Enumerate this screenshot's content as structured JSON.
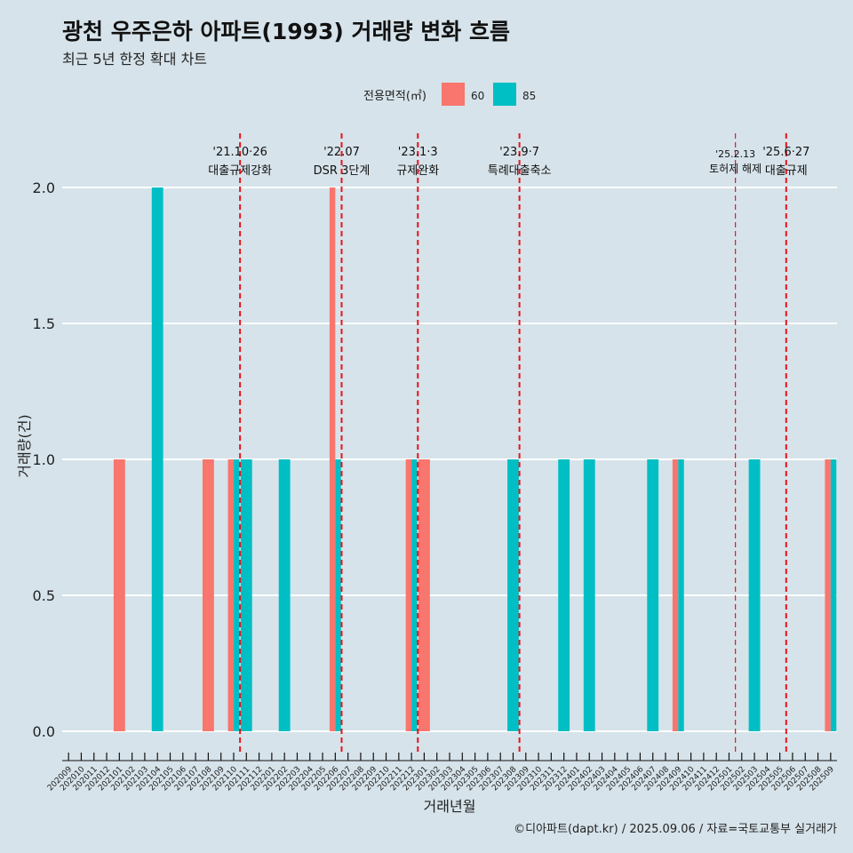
{
  "title": "광천 우주은하 아파트(1993) 거래량 변화 흐름",
  "subtitle": "최근 5년 한정 확대 차트",
  "caption": "©디아파트(dapt.kr) / 2025.09.06 / 자료=국토교통부 실거래가",
  "legend": {
    "title": "전용면적(㎡)",
    "items": [
      {
        "label": "60",
        "color": "#f8766d"
      },
      {
        "label": "85",
        "color": "#00bfc4"
      }
    ]
  },
  "chart_data": {
    "type": "bar",
    "xlabel": "거래년월",
    "ylabel": "거래량(건)",
    "ylim": [
      0,
      2
    ],
    "yticks": [
      "0.0",
      "0.5",
      "1.0",
      "1.5",
      "2.0"
    ],
    "categories": [
      "202009",
      "202010",
      "202011",
      "202012",
      "202101",
      "202102",
      "202103",
      "202104",
      "202105",
      "202106",
      "202107",
      "202108",
      "202109",
      "202110",
      "202111",
      "202112",
      "202201",
      "202202",
      "202203",
      "202204",
      "202205",
      "202206",
      "202207",
      "202208",
      "202209",
      "202210",
      "202211",
      "202212",
      "202301",
      "202302",
      "202303",
      "202304",
      "202305",
      "202306",
      "202307",
      "202308",
      "202309",
      "202310",
      "202311",
      "202312",
      "202401",
      "202402",
      "202403",
      "202404",
      "202405",
      "202406",
      "202407",
      "202408",
      "202409",
      "202410",
      "202411",
      "202412",
      "202501",
      "202502",
      "202503",
      "202504",
      "202505",
      "202506",
      "202507",
      "202508",
      "202509"
    ],
    "series": [
      {
        "name": "60",
        "color": "#f8766d",
        "points": [
          {
            "x": "202101",
            "y": 1
          },
          {
            "x": "202108",
            "y": 1
          },
          {
            "x": "202110",
            "y": 1
          },
          {
            "x": "202206",
            "y": 2
          },
          {
            "x": "202212",
            "y": 1
          },
          {
            "x": "202301",
            "y": 1
          },
          {
            "x": "202409",
            "y": 1
          },
          {
            "x": "202509",
            "y": 1
          }
        ]
      },
      {
        "name": "85",
        "color": "#00bfc4",
        "points": [
          {
            "x": "202104",
            "y": 2
          },
          {
            "x": "202110",
            "y": 1
          },
          {
            "x": "202111",
            "y": 1
          },
          {
            "x": "202202",
            "y": 1
          },
          {
            "x": "202206",
            "y": 1
          },
          {
            "x": "202212",
            "y": 1
          },
          {
            "x": "202308",
            "y": 1
          },
          {
            "x": "202312",
            "y": 1
          },
          {
            "x": "202402",
            "y": 1
          },
          {
            "x": "202407",
            "y": 1
          },
          {
            "x": "202409",
            "y": 1
          },
          {
            "x": "202503",
            "y": 1
          },
          {
            "x": "202509",
            "y": 1
          }
        ]
      }
    ],
    "events": [
      {
        "x": "202111",
        "date": "'21.10·26",
        "label": "대출규제강화",
        "bold": true
      },
      {
        "x": "202207",
        "date": "'22.07",
        "label": "DSR 3단계",
        "bold": true
      },
      {
        "x": "202301",
        "date": "'23.1·3",
        "label": "규제완화",
        "bold": true
      },
      {
        "x": "202309",
        "date": "'23.9·7",
        "label": "특례대출축소",
        "bold": true
      },
      {
        "x": "202502",
        "date": "'25.2.13",
        "label": "토허제 해제",
        "bold": false
      },
      {
        "x": "202506",
        "date": "'25.6·27",
        "label": "대출규제",
        "bold": true
      }
    ]
  }
}
